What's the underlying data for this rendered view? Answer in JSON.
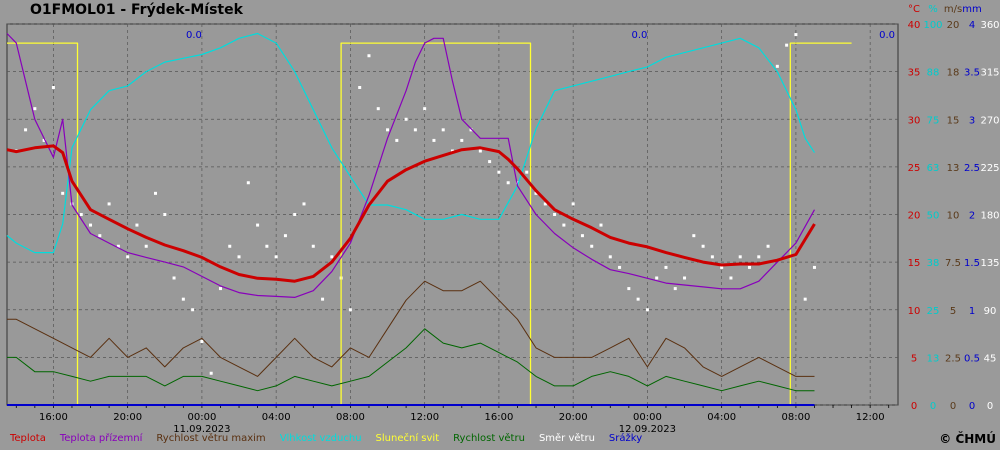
{
  "title": "O1FMOL01 - Frýdek-Místek",
  "copyright": "© ČHMÚ",
  "units": [
    {
      "label": "°C",
      "color": "#cc0000"
    },
    {
      "label": "%",
      "color": "#00cccc"
    },
    {
      "label": "m/s",
      "color": "#5a3a1a"
    },
    {
      "label": "mm",
      "color": "#0000cc"
    }
  ],
  "colors": {
    "temp": "#cc0000",
    "ground": "#8800bb",
    "gust": "#5a3010",
    "humidity": "#00dddd",
    "sun": "#ffff33",
    "wind": "#006600",
    "dir": "#ffffff",
    "precip": "#0000cc"
  },
  "chart_data": {
    "type": "line",
    "title": "O1FMOL01 - Frýdek-Místek",
    "xlim": [
      13.5,
      61.5
    ],
    "x_ticks": [
      {
        "x": 16,
        "label": "16:00"
      },
      {
        "x": 20,
        "label": "20:00"
      },
      {
        "x": 24,
        "label": "00:00"
      },
      {
        "x": 28,
        "label": "04:00"
      },
      {
        "x": 32,
        "label": "08:00"
      },
      {
        "x": 36,
        "label": "12:00"
      },
      {
        "x": 40,
        "label": "16:00"
      },
      {
        "x": 44,
        "label": "20:00"
      },
      {
        "x": 48,
        "label": "00:00"
      },
      {
        "x": 52,
        "label": "04:00"
      },
      {
        "x": 56,
        "label": "08:00"
      },
      {
        "x": 60,
        "label": "12:00"
      }
    ],
    "date_labels": [
      {
        "x": 24,
        "label": "11.09.2023"
      },
      {
        "x": 48,
        "label": "12.09.2023"
      }
    ],
    "axes": {
      "temp": {
        "unit": "°C",
        "color": "#cc0000",
        "min": 0,
        "max": 40,
        "ticks": [
          "0",
          "5",
          "10",
          "15",
          "20",
          "25",
          "30",
          "35",
          "40"
        ]
      },
      "humidity": {
        "unit": "%",
        "color": "#00cccc",
        "min": 0,
        "max": 100,
        "ticks": [
          "0",
          "13",
          "25",
          "38",
          "50",
          "63",
          "75",
          "88",
          "100"
        ]
      },
      "wind": {
        "unit": "m/s",
        "color": "#5a3a1a",
        "min": 0,
        "max": 20,
        "ticks": [
          "0",
          "2.5",
          "5",
          "7.5",
          "10",
          "13",
          "15",
          "18",
          "20"
        ]
      },
      "precip": {
        "unit": "mm",
        "color": "#0000cc",
        "min": 0,
        "max": 4,
        "ticks": [
          "0",
          "0.5",
          "1",
          "1.5",
          "2",
          "2.5",
          "3",
          "3.5",
          "4"
        ]
      },
      "direction": {
        "unit": "°",
        "color": "#ffffff",
        "min": 0,
        "max": 360,
        "ticks": [
          "0",
          "45",
          "90",
          "135",
          "180",
          "225",
          "270",
          "315",
          "360"
        ]
      }
    },
    "precip_annotations": [
      {
        "x": 24,
        "label": "0.0"
      },
      {
        "x": 48,
        "label": "0.0"
      },
      {
        "x": 61.8,
        "label": "0.0"
      }
    ],
    "series": [
      {
        "name": "Teplota",
        "key": "temp",
        "axis": "temp",
        "color": "#cc0000",
        "x": [
          13.5,
          14,
          15,
          16,
          16.5,
          17,
          18,
          19,
          20,
          21,
          22,
          23,
          24,
          25,
          26,
          27,
          28,
          29,
          30,
          31,
          32,
          33,
          34,
          35,
          36,
          37,
          38,
          39,
          40,
          40.5,
          41,
          42,
          43,
          44,
          45,
          46,
          47,
          48,
          49,
          50,
          51,
          52,
          53,
          54,
          55,
          56,
          57
        ],
        "y": [
          26.8,
          26.6,
          27.0,
          27.2,
          26.5,
          23.5,
          20.5,
          19.5,
          18.5,
          17.6,
          16.8,
          16.2,
          15.5,
          14.5,
          13.7,
          13.3,
          13.2,
          13.0,
          13.5,
          15.0,
          17.5,
          21.0,
          23.5,
          24.7,
          25.6,
          26.2,
          26.8,
          27.0,
          26.6,
          25.8,
          24.8,
          22.5,
          20.5,
          19.5,
          18.6,
          17.6,
          17.0,
          16.6,
          16.0,
          15.5,
          15.0,
          14.7,
          14.8,
          14.8,
          15.2,
          15.8,
          19.0
        ]
      },
      {
        "name": "Teplota přízemní",
        "key": "ground",
        "axis": "temp",
        "color": "#8800bb",
        "x": [
          13.5,
          14,
          15,
          16,
          16.5,
          17,
          18,
          19,
          20,
          21,
          22,
          23,
          24,
          25,
          26,
          27,
          28,
          29,
          30,
          31,
          32,
          33,
          34,
          35,
          35.5,
          36,
          36.5,
          37,
          37.5,
          38,
          39,
          40,
          40.5,
          41,
          42,
          43,
          44,
          45,
          46,
          47,
          48,
          49,
          50,
          51,
          52,
          53,
          54,
          55,
          56,
          57
        ],
        "y": [
          39,
          38,
          30,
          26,
          30,
          21,
          18,
          17,
          16,
          15.5,
          15,
          14.5,
          13.5,
          12.5,
          11.8,
          11.5,
          11.4,
          11.3,
          12.0,
          14,
          17,
          22,
          28,
          33,
          36,
          38,
          38.5,
          38.5,
          34,
          30,
          28,
          28,
          28,
          23,
          20,
          18,
          16.5,
          15.3,
          14.2,
          13.8,
          13.3,
          12.8,
          12.6,
          12.4,
          12.2,
          12.2,
          13.0,
          15,
          17,
          20.5
        ]
      },
      {
        "name": "Rychlost větru maxim",
        "key": "gust",
        "axis": "temp",
        "color": "#5a3010",
        "x": [
          13.5,
          14,
          15,
          16,
          17,
          18,
          19,
          20,
          21,
          22,
          23,
          24,
          25,
          26,
          27,
          28,
          29,
          30,
          31,
          32,
          33,
          34,
          35,
          36,
          37,
          38,
          39,
          40,
          41,
          42,
          43,
          44,
          45,
          46,
          47,
          48,
          49,
          50,
          51,
          52,
          53,
          54,
          55,
          56,
          57
        ],
        "y": [
          9,
          9,
          8,
          7,
          6,
          5,
          7,
          5,
          6,
          4,
          6,
          7,
          5,
          4,
          3,
          5,
          7,
          5,
          4,
          6,
          5,
          8,
          11,
          13,
          12,
          12,
          13,
          11,
          9,
          6,
          5,
          5,
          5,
          6,
          7,
          4,
          7,
          6,
          4,
          3,
          4,
          5,
          4,
          3,
          3
        ]
      },
      {
        "name": "Vlhkost vzduchu",
        "key": "humidity",
        "axis": "temp",
        "color": "#00dddd",
        "x": [
          13.5,
          14,
          15,
          16,
          16.5,
          17,
          18,
          19,
          20,
          21,
          22,
          23,
          24,
          25,
          26,
          27,
          28,
          29,
          30,
          31,
          32,
          33,
          34,
          35,
          36,
          37,
          38,
          39,
          40,
          41,
          42,
          43,
          44,
          45,
          46,
          47,
          48,
          49,
          50,
          51,
          52,
          53,
          54,
          55,
          56,
          56.5,
          57
        ],
        "y": [
          17.8,
          17.0,
          16.0,
          16.0,
          19.0,
          27.0,
          31.0,
          33.0,
          33.5,
          35.0,
          36.0,
          36.4,
          36.8,
          37.5,
          38.5,
          39.0,
          38.0,
          35.0,
          31.0,
          27.0,
          24.0,
          21.0,
          21.0,
          20.5,
          19.5,
          19.5,
          20.0,
          19.5,
          19.5,
          23.0,
          29.0,
          33.0,
          33.5,
          34.0,
          34.5,
          35.0,
          35.5,
          36.5,
          37.0,
          37.5,
          38.0,
          38.5,
          37.5,
          35.0,
          31.0,
          28.0,
          26.5
        ]
      },
      {
        "name": "Sluneční svit",
        "key": "sun",
        "axis": "temp",
        "color": "#ffff33",
        "x": [
          13.5,
          17.3,
          17.3,
          31.5,
          31.5,
          41.7,
          41.7,
          55.7,
          55.7,
          59
        ],
        "y": [
          38,
          38,
          0,
          0,
          38,
          38,
          0,
          0,
          38,
          38
        ]
      },
      {
        "name": "Rychlost větru",
        "key": "wind",
        "axis": "temp",
        "color": "#006600",
        "x": [
          13.5,
          14,
          15,
          16,
          17,
          18,
          19,
          20,
          21,
          22,
          23,
          24,
          25,
          26,
          27,
          28,
          29,
          30,
          31,
          32,
          33,
          34,
          35,
          36,
          37,
          38,
          39,
          40,
          41,
          42,
          43,
          44,
          45,
          46,
          47,
          48,
          49,
          50,
          51,
          52,
          53,
          54,
          55,
          56,
          57
        ],
        "y": [
          5,
          5,
          3.5,
          3.5,
          3,
          2.5,
          3,
          3,
          3,
          2,
          3,
          3,
          2.5,
          2,
          1.5,
          2,
          3,
          2.5,
          2,
          2.5,
          3,
          4.5,
          6,
          8,
          6.5,
          6,
          6.5,
          5.5,
          4.5,
          3,
          2,
          2,
          3,
          3.5,
          3,
          2,
          3,
          2.5,
          2,
          1.5,
          2,
          2.5,
          2,
          1.5,
          1.5
        ]
      },
      {
        "name": "Směr větru",
        "key": "dir",
        "axis": "direction",
        "color": "#ffffff",
        "x": [
          14,
          14.5,
          15,
          15.5,
          16,
          16.5,
          17,
          17.5,
          18,
          18.5,
          19,
          19.5,
          20,
          20.5,
          21,
          21.5,
          22,
          22.5,
          23,
          23.5,
          24,
          24.5,
          25,
          25.5,
          26,
          26.5,
          27,
          27.5,
          28,
          28.5,
          29,
          29.5,
          30,
          30.5,
          31,
          31.5,
          32,
          32.5,
          33,
          33.5,
          34,
          34.5,
          35,
          35.5,
          36,
          36.5,
          37,
          37.5,
          38,
          38.5,
          39,
          39.5,
          40,
          40.5,
          41,
          41.5,
          42,
          42.5,
          43,
          43.5,
          44,
          44.5,
          45,
          45.5,
          46,
          46.5,
          47,
          47.5,
          48,
          48.5,
          49,
          49.5,
          50,
          50.5,
          51,
          51.5,
          52,
          52.5,
          53,
          53.5,
          54,
          54.5,
          55,
          55.5,
          56,
          56.5,
          57
        ],
        "y": [
          240,
          260,
          280,
          250,
          300,
          200,
          190,
          180,
          170,
          160,
          190,
          150,
          140,
          170,
          150,
          200,
          180,
          120,
          100,
          90,
          60,
          30,
          110,
          150,
          140,
          210,
          170,
          150,
          140,
          160,
          180,
          190,
          150,
          100,
          140,
          120,
          90,
          300,
          330,
          280,
          260,
          250,
          270,
          260,
          280,
          250,
          260,
          240,
          250,
          260,
          240,
          230,
          220,
          210,
          210,
          220,
          200,
          190,
          180,
          170,
          190,
          160,
          150,
          170,
          140,
          130,
          110,
          100,
          90,
          120,
          130,
          110,
          120,
          160,
          150,
          140,
          130,
          120,
          140,
          130,
          140,
          150,
          320,
          340,
          350,
          100,
          130
        ]
      },
      {
        "name": "Srážky",
        "key": "precip",
        "axis": "precip",
        "color": "#0000cc",
        "x": [
          13.5,
          57
        ],
        "y": [
          0,
          0
        ]
      }
    ]
  }
}
